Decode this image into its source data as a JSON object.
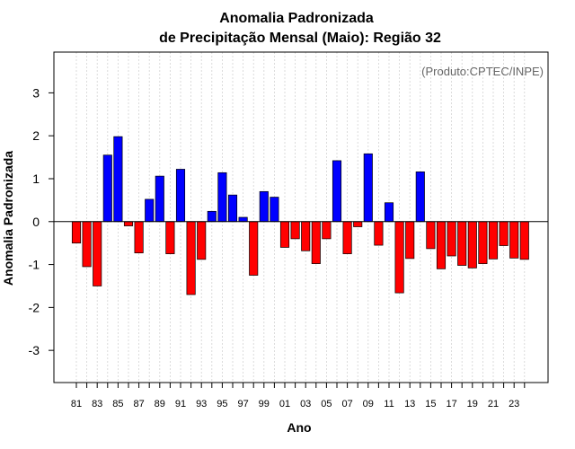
{
  "chart_data": {
    "type": "bar",
    "title": "Anomalia Padronizada",
    "subtitle": "de Precipitação Mensal (Maio): Região 32",
    "xlabel": "Ano",
    "ylabel": "Anomalia Padronizada",
    "annotation": "(Produto:CPTEC/INPE)",
    "ylim": [
      -3.75,
      3.95
    ],
    "yticks": [
      "-3",
      "-2",
      "-1",
      "0",
      "1",
      "2",
      "3"
    ],
    "xtick_labels": [
      "81",
      "83",
      "85",
      "87",
      "89",
      "91",
      "93",
      "95",
      "97",
      "99",
      "01",
      "03",
      "05",
      "07",
      "09",
      "11",
      "13",
      "15",
      "17",
      "19",
      "21",
      "23"
    ],
    "categories": [
      "1981",
      "1982",
      "1983",
      "1984",
      "1985",
      "1986",
      "1987",
      "1988",
      "1989",
      "1990",
      "1991",
      "1992",
      "1993",
      "1994",
      "1995",
      "1996",
      "1997",
      "1998",
      "1999",
      "2000",
      "2001",
      "2002",
      "2003",
      "2004",
      "2005",
      "2006",
      "2007",
      "2008",
      "2009",
      "2010",
      "2011",
      "2012",
      "2013",
      "2014",
      "2015",
      "2016",
      "2017",
      "2018",
      "2019",
      "2020",
      "2021",
      "2022",
      "2023",
      "2024"
    ],
    "values": [
      -0.5,
      -1.05,
      -1.5,
      1.55,
      1.98,
      -0.1,
      -0.73,
      0.52,
      1.06,
      -0.75,
      1.22,
      -1.7,
      -0.88,
      0.24,
      1.14,
      0.62,
      0.1,
      -1.25,
      0.7,
      0.57,
      -0.6,
      -0.4,
      -0.68,
      -0.98,
      -0.4,
      1.42,
      -0.75,
      -0.12,
      1.58,
      -0.55,
      0.44,
      -1.66,
      -0.86,
      1.16,
      -0.63,
      -1.1,
      -0.8,
      -1.02,
      -1.08,
      -0.98,
      -0.87,
      -0.56,
      -0.85,
      -0.88
    ],
    "colors": {
      "positive": "#0000ff",
      "negative": "#ff0000",
      "grid": "#d3d3d3",
      "zero_line": "#000000"
    },
    "grid": true
  }
}
